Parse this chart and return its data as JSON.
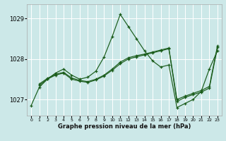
{
  "xlabel": "Graphe pression niveau de la mer (hPa)",
  "bg_color": "#cce8e8",
  "grid_color": "#ffffff",
  "line_color": "#1a5c1a",
  "ylim": [
    1026.6,
    1029.35
  ],
  "xlim": [
    -0.5,
    23.5
  ],
  "yticks": [
    1027,
    1028,
    1029
  ],
  "xticks": [
    0,
    1,
    2,
    3,
    4,
    5,
    6,
    7,
    8,
    9,
    10,
    11,
    12,
    13,
    14,
    15,
    16,
    17,
    18,
    19,
    20,
    21,
    22,
    23
  ],
  "line1_x": [
    0,
    1,
    2,
    3,
    4,
    5,
    6,
    7,
    8,
    9,
    10,
    11,
    12,
    13,
    14,
    15,
    16,
    17,
    18,
    19,
    20,
    21,
    22,
    23
  ],
  "line1_y": [
    1026.85,
    1027.3,
    1027.5,
    1027.65,
    1027.75,
    1027.6,
    1027.5,
    1027.55,
    1027.7,
    1028.05,
    1028.55,
    1029.1,
    1028.8,
    1028.5,
    1028.2,
    1027.95,
    1027.8,
    1027.85,
    1026.8,
    1026.9,
    1027.0,
    1027.2,
    1027.75,
    1028.2
  ],
  "line2_x": [
    1,
    2,
    3,
    4,
    5,
    6,
    7,
    8,
    9,
    10,
    11,
    12,
    13,
    14,
    15,
    16,
    17,
    18,
    19,
    20,
    21,
    22,
    23
  ],
  "line2_y": [
    1027.35,
    1027.5,
    1027.6,
    1027.65,
    1027.5,
    1027.45,
    1027.42,
    1027.48,
    1027.58,
    1027.72,
    1027.88,
    1028.0,
    1028.05,
    1028.1,
    1028.15,
    1028.2,
    1028.25,
    1026.95,
    1027.05,
    1027.12,
    1027.18,
    1027.28,
    1028.28
  ],
  "line3_x": [
    1,
    2,
    3,
    4,
    5,
    6,
    7,
    8,
    9,
    10,
    11,
    12,
    13,
    14,
    15,
    16,
    17,
    18,
    19,
    20,
    21,
    22,
    23
  ],
  "line3_y": [
    1027.38,
    1027.52,
    1027.62,
    1027.67,
    1027.53,
    1027.47,
    1027.44,
    1027.5,
    1027.6,
    1027.75,
    1027.92,
    1028.03,
    1028.08,
    1028.12,
    1028.17,
    1028.22,
    1028.27,
    1027.0,
    1027.08,
    1027.15,
    1027.22,
    1027.32,
    1028.32
  ]
}
